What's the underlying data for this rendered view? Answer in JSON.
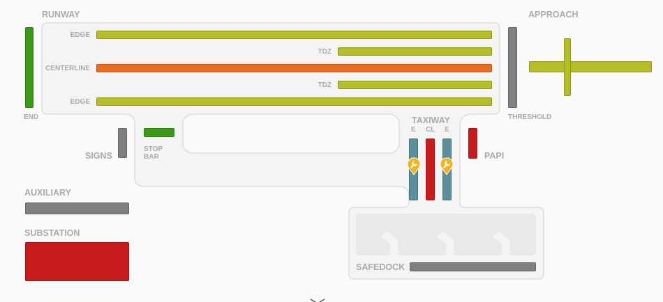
{
  "colors": {
    "edge": "#b5bd27",
    "centerline": "#ea6d1e",
    "ok": "#3c9a1a",
    "off": "#808080",
    "fault": "#c81b1b",
    "maintenance": "#5a8f9b",
    "marker": "#f5b120"
  },
  "runway": {
    "title": "RUNWAY",
    "edge_top": "EDGE",
    "tdz_top": "TDZ",
    "centerline": "CENTERLINE",
    "tdz_bottom": "TDZ",
    "edge_bottom": "EDGE",
    "end": "END"
  },
  "approach": {
    "title": "APPROACH",
    "threshold": "THRESHOLD"
  },
  "signs": "SIGNS",
  "stop_bar": {
    "line1": "STOP",
    "line2": "BAR"
  },
  "taxiway": {
    "title": "TAXIWAY",
    "e1": "E",
    "cl": "CL",
    "e2": "E",
    "marker_icon": "wrench-icon"
  },
  "papi": "PAPI",
  "auxiliary": "AUXILIARY",
  "substation": "SUBSTATION",
  "safedock": "SAFEDOCK"
}
